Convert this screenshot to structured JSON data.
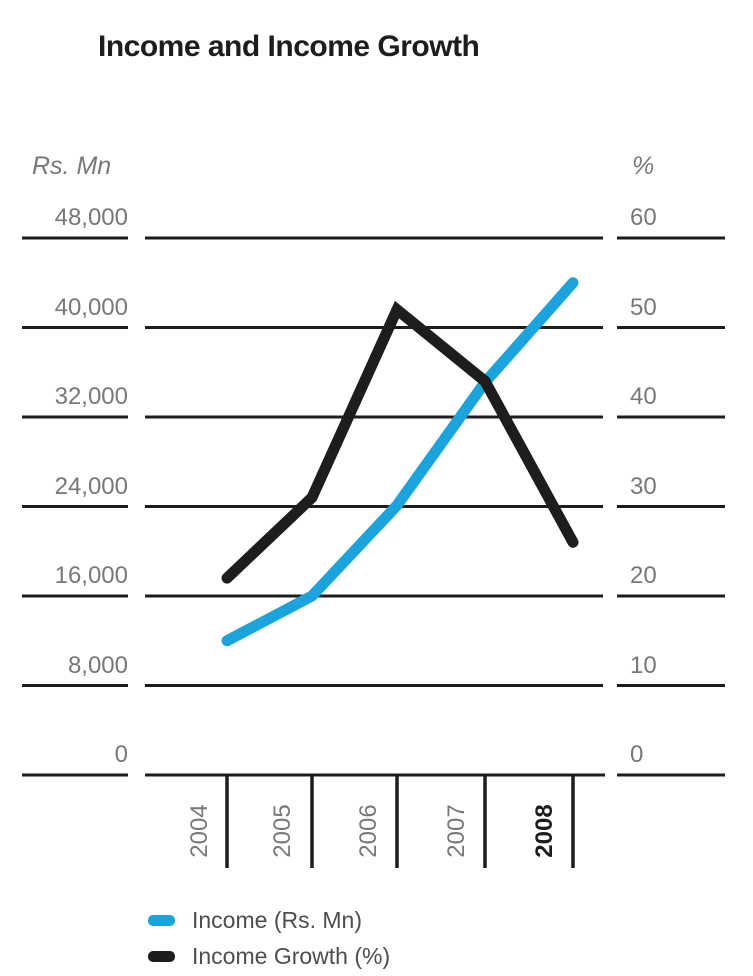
{
  "title": "Income and Income Growth",
  "chart_data": {
    "type": "line",
    "title": "Income and Income Growth",
    "x": [
      "2004",
      "2005",
      "2006",
      "2007",
      "2008"
    ],
    "x_highlight": "2008",
    "series": [
      {
        "name": "Income (Rs. Mn)",
        "axis": "left",
        "color": "#1aa3dc",
        "values": [
          12000,
          16000,
          24100,
          35100,
          44000
        ]
      },
      {
        "name": "Income Growth (%)",
        "axis": "right",
        "color": "#1d1d1b",
        "values": [
          22,
          31,
          52,
          44,
          26
        ]
      }
    ],
    "left_axis": {
      "unit": "Rs. Mn",
      "min": 0,
      "max": 48000,
      "ticks": [
        "48,000",
        "40,000",
        "32,000",
        "24,000",
        "16,000",
        "8,000",
        "0"
      ]
    },
    "right_axis": {
      "unit": "%",
      "min": 0,
      "max": 60,
      "ticks": [
        "60",
        "50",
        "40",
        "30",
        "20",
        "10",
        "0"
      ]
    },
    "grid": true,
    "legend_position": "bottom-left"
  },
  "legend": {
    "items": [
      {
        "label": "Income (Rs. Mn)",
        "color": "#1aa3dc"
      },
      {
        "label": "Income Growth (%)",
        "color": "#1d1d1b"
      }
    ]
  },
  "colors": {
    "line_black": "#1d1d1b",
    "line_blue": "#1aa3dc",
    "grid": "#1d1d1b",
    "text_gray": "#77787b"
  }
}
